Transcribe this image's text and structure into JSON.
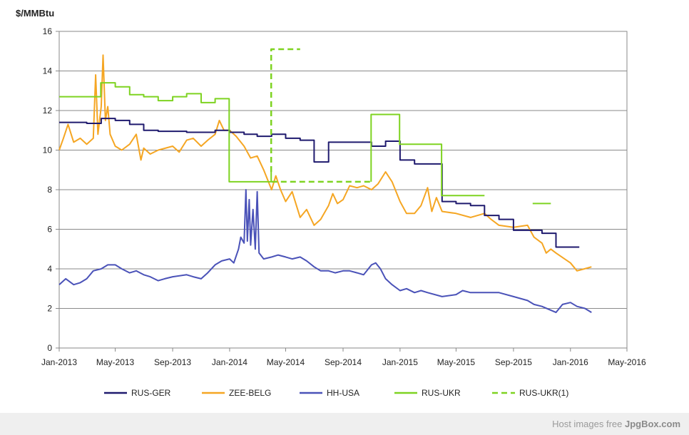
{
  "chart_data": {
    "type": "line",
    "ylabel": "$/MMBtu",
    "xlabel": "",
    "ylim": [
      0,
      16
    ],
    "yticks": [
      0,
      2,
      4,
      6,
      8,
      10,
      12,
      14,
      16
    ],
    "xticks": [
      {
        "date": "2013-01-01",
        "label": "Jan-2013"
      },
      {
        "date": "2013-05-01",
        "label": "May-2013"
      },
      {
        "date": "2013-09-01",
        "label": "Sep-2013"
      },
      {
        "date": "2014-01-01",
        "label": "Jan-2014"
      },
      {
        "date": "2014-05-01",
        "label": "May-2014"
      },
      {
        "date": "2014-09-01",
        "label": "Sep-2014"
      },
      {
        "date": "2015-01-01",
        "label": "Jan-2015"
      },
      {
        "date": "2015-05-01",
        "label": "May-2015"
      },
      {
        "date": "2015-09-01",
        "label": "Sep-2015"
      },
      {
        "date": "2016-01-01",
        "label": "Jan-2016"
      },
      {
        "date": "2016-05-01",
        "label": "May-2016"
      }
    ],
    "xlim": [
      "2013-01-01",
      "2016-05-01"
    ],
    "grid": "horizontal",
    "legend_position": "bottom",
    "series": [
      {
        "name": "RUS-GER",
        "color": "#1f1a6e",
        "style": "solid",
        "points": [
          [
            "2013-01-01",
            11.4
          ],
          [
            "2013-03-01",
            11.4
          ],
          [
            "2013-03-01",
            11.35
          ],
          [
            "2013-04-01",
            11.35
          ],
          [
            "2013-04-01",
            11.6
          ],
          [
            "2013-05-01",
            11.6
          ],
          [
            "2013-05-01",
            11.5
          ],
          [
            "2013-06-01",
            11.5
          ],
          [
            "2013-06-01",
            11.3
          ],
          [
            "2013-07-01",
            11.3
          ],
          [
            "2013-07-01",
            11.0
          ],
          [
            "2013-08-01",
            11.0
          ],
          [
            "2013-08-01",
            10.95
          ],
          [
            "2013-10-01",
            10.95
          ],
          [
            "2013-10-01",
            10.9
          ],
          [
            "2013-12-01",
            10.9
          ],
          [
            "2013-12-01",
            11.0
          ],
          [
            "2014-01-01",
            11.0
          ],
          [
            "2014-01-01",
            10.9
          ],
          [
            "2014-02-01",
            10.9
          ],
          [
            "2014-02-01",
            10.8
          ],
          [
            "2014-03-01",
            10.8
          ],
          [
            "2014-03-01",
            10.7
          ],
          [
            "2014-04-01",
            10.7
          ],
          [
            "2014-04-01",
            10.8
          ],
          [
            "2014-05-01",
            10.8
          ],
          [
            "2014-05-01",
            10.6
          ],
          [
            "2014-06-01",
            10.6
          ],
          [
            "2014-06-01",
            10.5
          ],
          [
            "2014-07-01",
            10.5
          ],
          [
            "2014-07-01",
            9.4
          ],
          [
            "2014-08-01",
            9.4
          ],
          [
            "2014-08-01",
            10.4
          ],
          [
            "2014-11-01",
            10.4
          ],
          [
            "2014-11-01",
            10.2
          ],
          [
            "2014-12-01",
            10.2
          ],
          [
            "2014-12-01",
            10.45
          ],
          [
            "2015-01-01",
            10.45
          ],
          [
            "2015-01-01",
            9.5
          ],
          [
            "2015-02-01",
            9.5
          ],
          [
            "2015-02-01",
            9.3
          ],
          [
            "2015-04-01",
            9.3
          ],
          [
            "2015-04-01",
            7.4
          ],
          [
            "2015-05-01",
            7.4
          ],
          [
            "2015-05-01",
            7.3
          ],
          [
            "2015-06-01",
            7.3
          ],
          [
            "2015-06-01",
            7.2
          ],
          [
            "2015-07-01",
            7.2
          ],
          [
            "2015-07-01",
            6.7
          ],
          [
            "2015-08-01",
            6.7
          ],
          [
            "2015-08-01",
            6.5
          ],
          [
            "2015-09-01",
            6.5
          ],
          [
            "2015-09-01",
            5.95
          ],
          [
            "2015-11-01",
            5.95
          ],
          [
            "2015-11-01",
            5.8
          ],
          [
            "2015-12-01",
            5.8
          ],
          [
            "2015-12-01",
            5.1
          ],
          [
            "2016-01-20",
            5.1
          ]
        ]
      },
      {
        "name": "ZEE-BELG",
        "color": "#f5a623",
        "style": "solid",
        "points": [
          [
            "2013-01-01",
            10.0
          ],
          [
            "2013-01-10",
            10.6
          ],
          [
            "2013-01-20",
            11.3
          ],
          [
            "2013-02-01",
            10.4
          ],
          [
            "2013-02-15",
            10.6
          ],
          [
            "2013-03-01",
            10.3
          ],
          [
            "2013-03-15",
            10.6
          ],
          [
            "2013-03-20",
            13.8
          ],
          [
            "2013-03-25",
            10.8
          ],
          [
            "2013-04-01",
            12.2
          ],
          [
            "2013-04-05",
            14.8
          ],
          [
            "2013-04-10",
            11.5
          ],
          [
            "2013-04-15",
            12.2
          ],
          [
            "2013-04-20",
            10.8
          ],
          [
            "2013-05-01",
            10.2
          ],
          [
            "2013-05-15",
            10.0
          ],
          [
            "2013-06-01",
            10.3
          ],
          [
            "2013-06-15",
            10.8
          ],
          [
            "2013-06-25",
            9.5
          ],
          [
            "2013-07-01",
            10.1
          ],
          [
            "2013-07-15",
            9.8
          ],
          [
            "2013-08-01",
            10.0
          ],
          [
            "2013-09-01",
            10.2
          ],
          [
            "2013-09-15",
            9.9
          ],
          [
            "2013-10-01",
            10.5
          ],
          [
            "2013-10-15",
            10.6
          ],
          [
            "2013-11-01",
            10.2
          ],
          [
            "2013-11-15",
            10.5
          ],
          [
            "2013-12-01",
            10.8
          ],
          [
            "2013-12-10",
            11.5
          ],
          [
            "2013-12-20",
            11.0
          ],
          [
            "2014-01-01",
            11.0
          ],
          [
            "2014-01-15",
            10.7
          ],
          [
            "2014-02-01",
            10.2
          ],
          [
            "2014-02-15",
            9.6
          ],
          [
            "2014-03-01",
            9.7
          ],
          [
            "2014-03-15",
            9.0
          ],
          [
            "2014-04-01",
            8.0
          ],
          [
            "2014-04-10",
            8.7
          ],
          [
            "2014-04-20",
            8.0
          ],
          [
            "2014-05-01",
            7.4
          ],
          [
            "2014-05-15",
            7.9
          ],
          [
            "2014-06-01",
            6.6
          ],
          [
            "2014-06-15",
            7.0
          ],
          [
            "2014-07-01",
            6.2
          ],
          [
            "2014-07-15",
            6.5
          ],
          [
            "2014-08-01",
            7.2
          ],
          [
            "2014-08-10",
            7.8
          ],
          [
            "2014-08-20",
            7.3
          ],
          [
            "2014-09-01",
            7.5
          ],
          [
            "2014-09-15",
            8.2
          ],
          [
            "2014-10-01",
            8.1
          ],
          [
            "2014-10-15",
            8.2
          ],
          [
            "2014-11-01",
            8.0
          ],
          [
            "2014-11-15",
            8.3
          ],
          [
            "2014-12-01",
            8.9
          ],
          [
            "2014-12-15",
            8.4
          ],
          [
            "2015-01-01",
            7.4
          ],
          [
            "2015-01-15",
            6.8
          ],
          [
            "2015-02-01",
            6.8
          ],
          [
            "2015-02-15",
            7.2
          ],
          [
            "2015-03-01",
            8.1
          ],
          [
            "2015-03-10",
            6.9
          ],
          [
            "2015-03-20",
            7.6
          ],
          [
            "2015-04-01",
            6.9
          ],
          [
            "2015-05-01",
            6.8
          ],
          [
            "2015-06-01",
            6.6
          ],
          [
            "2015-07-01",
            6.8
          ],
          [
            "2015-07-15",
            6.5
          ],
          [
            "2015-08-01",
            6.2
          ],
          [
            "2015-09-01",
            6.1
          ],
          [
            "2015-10-01",
            6.2
          ],
          [
            "2015-10-15",
            5.6
          ],
          [
            "2015-11-01",
            5.3
          ],
          [
            "2015-11-10",
            4.8
          ],
          [
            "2015-11-20",
            5.0
          ],
          [
            "2015-12-01",
            4.8
          ],
          [
            "2016-01-01",
            4.3
          ],
          [
            "2016-01-15",
            3.9
          ],
          [
            "2016-01-31",
            4.0
          ],
          [
            "2016-02-15",
            4.1
          ]
        ]
      },
      {
        "name": "HH-USA",
        "color": "#4a52b8",
        "style": "solid",
        "points": [
          [
            "2013-01-01",
            3.2
          ],
          [
            "2013-01-15",
            3.5
          ],
          [
            "2013-02-01",
            3.2
          ],
          [
            "2013-02-15",
            3.3
          ],
          [
            "2013-03-01",
            3.5
          ],
          [
            "2013-03-15",
            3.9
          ],
          [
            "2013-04-01",
            4.0
          ],
          [
            "2013-04-15",
            4.2
          ],
          [
            "2013-05-01",
            4.2
          ],
          [
            "2013-05-15",
            4.0
          ],
          [
            "2013-06-01",
            3.8
          ],
          [
            "2013-06-15",
            3.9
          ],
          [
            "2013-07-01",
            3.7
          ],
          [
            "2013-07-15",
            3.6
          ],
          [
            "2013-08-01",
            3.4
          ],
          [
            "2013-08-15",
            3.5
          ],
          [
            "2013-09-01",
            3.6
          ],
          [
            "2013-10-01",
            3.7
          ],
          [
            "2013-10-15",
            3.6
          ],
          [
            "2013-11-01",
            3.5
          ],
          [
            "2013-11-15",
            3.8
          ],
          [
            "2013-12-01",
            4.2
          ],
          [
            "2013-12-15",
            4.4
          ],
          [
            "2014-01-01",
            4.5
          ],
          [
            "2014-01-10",
            4.3
          ],
          [
            "2014-01-20",
            5.0
          ],
          [
            "2014-01-25",
            5.6
          ],
          [
            "2014-02-01",
            5.3
          ],
          [
            "2014-02-05",
            8.0
          ],
          [
            "2014-02-08",
            5.4
          ],
          [
            "2014-02-12",
            7.5
          ],
          [
            "2014-02-15",
            5.2
          ],
          [
            "2014-02-20",
            7.0
          ],
          [
            "2014-02-25",
            5.0
          ],
          [
            "2014-03-01",
            7.9
          ],
          [
            "2014-03-05",
            4.8
          ],
          [
            "2014-03-15",
            4.5
          ],
          [
            "2014-04-01",
            4.6
          ],
          [
            "2014-04-15",
            4.7
          ],
          [
            "2014-05-01",
            4.6
          ],
          [
            "2014-05-15",
            4.5
          ],
          [
            "2014-06-01",
            4.6
          ],
          [
            "2014-06-15",
            4.4
          ],
          [
            "2014-07-01",
            4.1
          ],
          [
            "2014-07-15",
            3.9
          ],
          [
            "2014-08-01",
            3.9
          ],
          [
            "2014-08-15",
            3.8
          ],
          [
            "2014-09-01",
            3.9
          ],
          [
            "2014-09-15",
            3.9
          ],
          [
            "2014-10-01",
            3.8
          ],
          [
            "2014-10-15",
            3.7
          ],
          [
            "2014-11-01",
            4.2
          ],
          [
            "2014-11-10",
            4.3
          ],
          [
            "2014-11-20",
            4.0
          ],
          [
            "2014-12-01",
            3.5
          ],
          [
            "2014-12-15",
            3.2
          ],
          [
            "2015-01-01",
            2.9
          ],
          [
            "2015-01-15",
            3.0
          ],
          [
            "2015-02-01",
            2.8
          ],
          [
            "2015-02-15",
            2.9
          ],
          [
            "2015-03-01",
            2.8
          ],
          [
            "2015-04-01",
            2.6
          ],
          [
            "2015-05-01",
            2.7
          ],
          [
            "2015-05-15",
            2.9
          ],
          [
            "2015-06-01",
            2.8
          ],
          [
            "2015-07-01",
            2.8
          ],
          [
            "2015-08-01",
            2.8
          ],
          [
            "2015-09-01",
            2.6
          ],
          [
            "2015-10-01",
            2.4
          ],
          [
            "2015-10-15",
            2.2
          ],
          [
            "2015-11-01",
            2.1
          ],
          [
            "2015-12-01",
            1.8
          ],
          [
            "2015-12-15",
            2.2
          ],
          [
            "2016-01-01",
            2.3
          ],
          [
            "2016-01-15",
            2.1
          ],
          [
            "2016-02-01",
            2.0
          ],
          [
            "2016-02-15",
            1.8
          ]
        ]
      },
      {
        "name": "RUS-UKR",
        "color": "#7ed321",
        "style": "solid",
        "points": [
          [
            "2013-01-01",
            12.7
          ],
          [
            "2013-03-31",
            12.7
          ],
          [
            "2013-03-31",
            13.4
          ],
          [
            "2013-05-01",
            13.4
          ],
          [
            "2013-05-01",
            13.2
          ],
          [
            "2013-06-01",
            13.2
          ],
          [
            "2013-06-01",
            12.8
          ],
          [
            "2013-07-01",
            12.8
          ],
          [
            "2013-07-01",
            12.7
          ],
          [
            "2013-08-01",
            12.7
          ],
          [
            "2013-08-01",
            12.5
          ],
          [
            "2013-09-01",
            12.5
          ],
          [
            "2013-09-01",
            12.7
          ],
          [
            "2013-10-01",
            12.7
          ],
          [
            "2013-10-01",
            12.85
          ],
          [
            "2013-11-01",
            12.85
          ],
          [
            "2013-11-01",
            12.4
          ],
          [
            "2013-12-01",
            12.4
          ],
          [
            "2013-12-01",
            12.6
          ],
          [
            "2013-12-31",
            12.6
          ],
          [
            "2013-12-31",
            8.4
          ],
          [
            "2014-03-31",
            8.4
          ],
          [
            "2014-03-31",
            8.9
          ]
        ]
      },
      {
        "name": "RUS-UKR(1)",
        "color": "#7ed321",
        "style": "dashed",
        "points": [
          [
            "2014-03-31",
            8.9
          ],
          [
            "2014-03-31",
            15.1
          ],
          [
            "2014-06-01",
            15.1
          ]
        ]
      },
      {
        "name": "RUS-UKR(1)-b",
        "color": "#7ed321",
        "style": "dashed",
        "legend": false,
        "points": [
          [
            "2014-04-01",
            8.4
          ],
          [
            "2014-10-31",
            8.4
          ]
        ]
      },
      {
        "name": "RUS-UKR-b",
        "color": "#7ed321",
        "style": "solid",
        "legend": false,
        "points": [
          [
            "2014-10-31",
            8.4
          ],
          [
            "2014-10-31",
            11.8
          ],
          [
            "2014-12-31",
            11.8
          ],
          [
            "2014-12-31",
            10.3
          ],
          [
            "2015-03-31",
            10.3
          ],
          [
            "2015-03-31",
            7.7
          ],
          [
            "2015-07-01",
            7.7
          ]
        ]
      },
      {
        "name": "RUS-UKR-c",
        "color": "#7ed321",
        "style": "solid",
        "legend": false,
        "points": [
          [
            "2015-10-12",
            7.3
          ],
          [
            "2015-11-20",
            7.3
          ]
        ]
      }
    ]
  },
  "legend": [
    {
      "label": "RUS-GER",
      "color": "#1f1a6e",
      "style": "solid"
    },
    {
      "label": "ZEE-BELG",
      "color": "#f5a623",
      "style": "solid"
    },
    {
      "label": "HH-USA",
      "color": "#4a52b8",
      "style": "solid"
    },
    {
      "label": "RUS-UKR",
      "color": "#7ed321",
      "style": "solid"
    },
    {
      "label": "RUS-UKR(1)",
      "color": "#7ed321",
      "style": "dashed"
    }
  ],
  "footer": {
    "text": "Host images free",
    "brand": "JpgBox.com"
  }
}
